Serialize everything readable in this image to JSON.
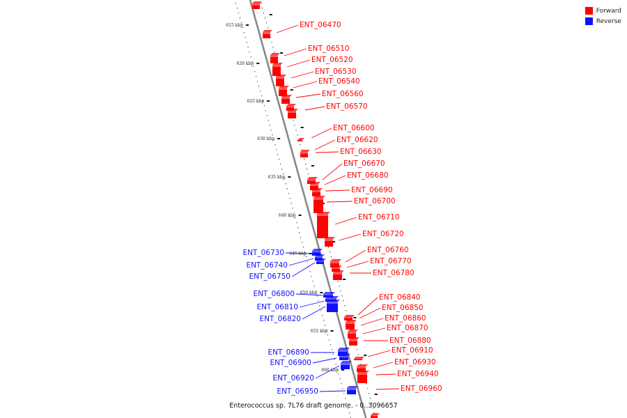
{
  "legend": [
    {
      "label": "Forward",
      "color": "#ff0000"
    },
    {
      "label": "Reverse",
      "color": "#1010ff"
    }
  ],
  "caption": "Enterococcus sp. 7L76 draft genome. - 0..3096657",
  "scale_ticks": [
    "615 kbp",
    "620 kbp",
    "625 kbp",
    "630 kbp",
    "635 kbp",
    "640 kbp",
    "645 kbp",
    "650 kbp",
    "655 kbp",
    "660 kbp"
  ],
  "genes_forward": [
    "ENT_06470",
    "ENT_06510",
    "ENT_06520",
    "ENT_06530",
    "ENT_06540",
    "ENT_06560",
    "ENT_06570",
    "ENT_06600",
    "ENT_06620",
    "ENT_06630",
    "ENT_06670",
    "ENT_06680",
    "ENT_06690",
    "ENT_06700",
    "ENT_06710",
    "ENT_06720",
    "ENT_06760",
    "ENT_06770",
    "ENT_06780",
    "ENT_06840",
    "ENT_06850",
    "ENT_06860",
    "ENT_06870",
    "ENT_06880",
    "ENT_06910",
    "ENT_06930",
    "ENT_06940",
    "ENT_06960"
  ],
  "genes_reverse": [
    "ENT_06730",
    "ENT_06740",
    "ENT_06750",
    "ENT_06800",
    "ENT_06810",
    "ENT_06820",
    "ENT_06890",
    "ENT_06900",
    "ENT_06920",
    "ENT_06950"
  ],
  "colors": {
    "forward": "#ff0000",
    "reverse": "#1010ff",
    "backbone": "#888888"
  }
}
